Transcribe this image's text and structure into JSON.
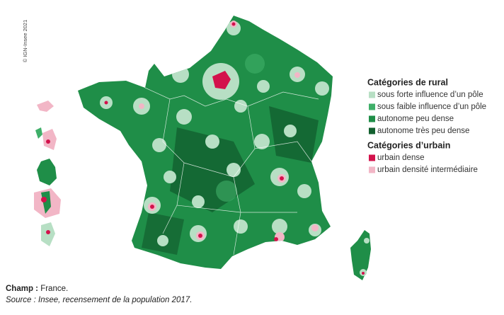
{
  "copyright": "© IGN-Insee 2021",
  "legend": {
    "groups": [
      {
        "title": "Catégories de rural",
        "items": [
          {
            "label": "sous forte influence d’un pôle",
            "color": "#b7dfc4"
          },
          {
            "label": "sous faible influence d’un pôle",
            "color": "#3faf69"
          },
          {
            "label": "autonome peu dense",
            "color": "#1f8e48"
          },
          {
            "label": "autonome très peu dense",
            "color": "#12602f"
          }
        ]
      },
      {
        "title": "Catégories d’urbain",
        "items": [
          {
            "label": "urbain dense",
            "color": "#d3124c"
          },
          {
            "label": "urbain densité intermédiaire",
            "color": "#f2b6c6"
          }
        ]
      }
    ]
  },
  "footer": {
    "champ_label": "Champ :",
    "champ_text": "France.",
    "source": "Source : Insee, recensement de la population 2017."
  }
}
